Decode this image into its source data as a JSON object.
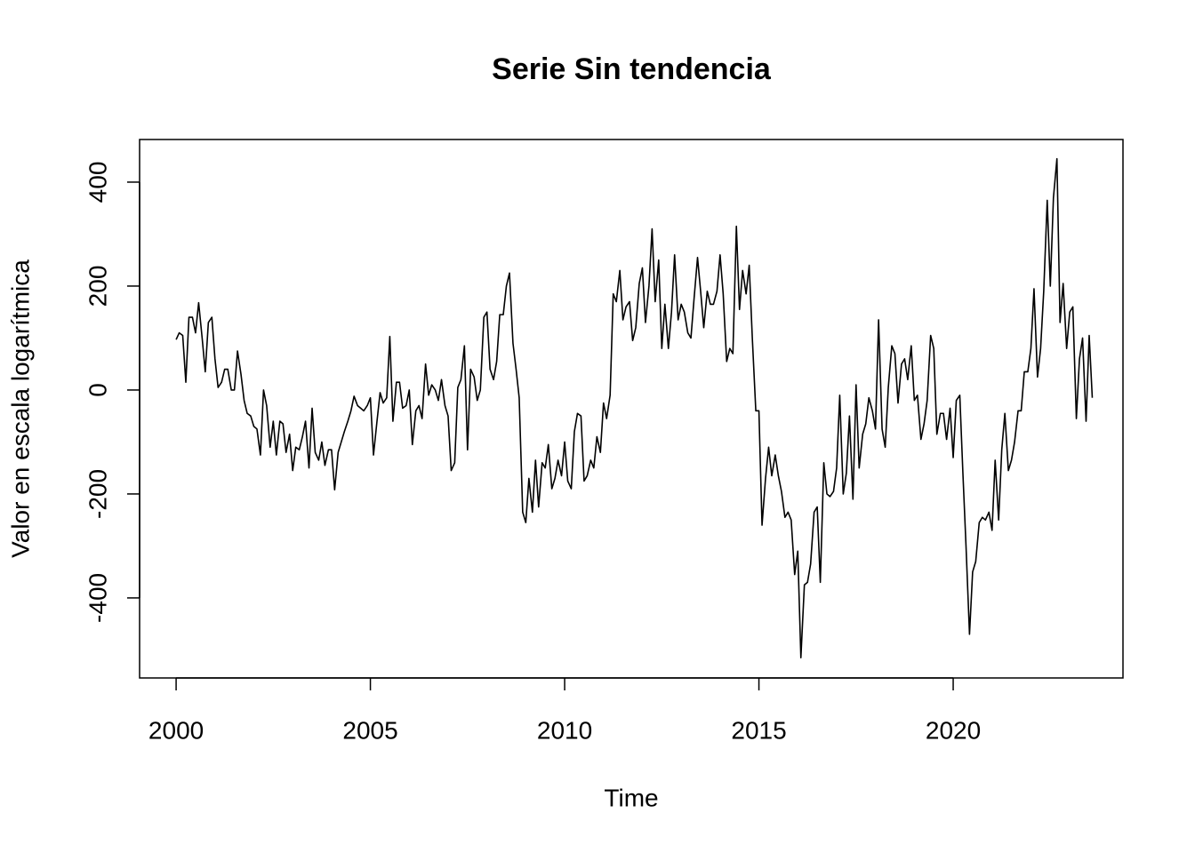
{
  "chart_data": {
    "type": "line",
    "title": "Serie Sin tendencia",
    "xlabel": "Time",
    "ylabel": "Valor en escala logarítmica",
    "xlim": [
      1999.06,
      2024.37
    ],
    "ylim": [
      -554,
      482
    ],
    "xticks": [
      2000,
      2005,
      2010,
      2015,
      2020
    ],
    "yticks": [
      -400,
      -200,
      0,
      200,
      400
    ],
    "color": "#000000",
    "x": [
      2000,
      2000.08,
      2000.17,
      2000.25,
      2000.33,
      2000.42,
      2000.5,
      2000.58,
      2000.67,
      2000.75,
      2000.83,
      2000.92,
      2001,
      2001.08,
      2001.17,
      2001.25,
      2001.33,
      2001.42,
      2001.5,
      2001.58,
      2001.67,
      2001.75,
      2001.83,
      2001.92,
      2002,
      2002.08,
      2002.17,
      2002.25,
      2002.33,
      2002.42,
      2002.5,
      2002.58,
      2002.67,
      2002.75,
      2002.83,
      2002.92,
      2003,
      2003.08,
      2003.17,
      2003.25,
      2003.33,
      2003.42,
      2003.5,
      2003.58,
      2003.67,
      2003.75,
      2003.83,
      2003.92,
      2004,
      2004.08,
      2004.17,
      2004.25,
      2004.33,
      2004.42,
      2004.5,
      2004.58,
      2004.67,
      2004.75,
      2004.83,
      2004.92,
      2005,
      2005.08,
      2005.17,
      2005.25,
      2005.33,
      2005.42,
      2005.5,
      2005.58,
      2005.67,
      2005.75,
      2005.83,
      2005.92,
      2006,
      2006.08,
      2006.17,
      2006.25,
      2006.33,
      2006.42,
      2006.5,
      2006.58,
      2006.67,
      2006.75,
      2006.83,
      2006.92,
      2007,
      2007.08,
      2007.17,
      2007.25,
      2007.33,
      2007.42,
      2007.5,
      2007.58,
      2007.67,
      2007.75,
      2007.83,
      2007.92,
      2008,
      2008.08,
      2008.17,
      2008.25,
      2008.33,
      2008.42,
      2008.5,
      2008.58,
      2008.67,
      2008.75,
      2008.83,
      2008.92,
      2009,
      2009.08,
      2009.17,
      2009.25,
      2009.33,
      2009.42,
      2009.5,
      2009.58,
      2009.67,
      2009.75,
      2009.83,
      2009.92,
      2010,
      2010.08,
      2010.17,
      2010.25,
      2010.33,
      2010.42,
      2010.5,
      2010.58,
      2010.67,
      2010.75,
      2010.83,
      2010.92,
      2011,
      2011.08,
      2011.17,
      2011.25,
      2011.33,
      2011.42,
      2011.5,
      2011.58,
      2011.67,
      2011.75,
      2011.83,
      2011.92,
      2012,
      2012.08,
      2012.17,
      2012.25,
      2012.33,
      2012.42,
      2012.5,
      2012.58,
      2012.67,
      2012.75,
      2012.83,
      2012.92,
      2013,
      2013.08,
      2013.17,
      2013.25,
      2013.33,
      2013.42,
      2013.5,
      2013.58,
      2013.67,
      2013.75,
      2013.83,
      2013.92,
      2014,
      2014.08,
      2014.17,
      2014.25,
      2014.33,
      2014.42,
      2014.5,
      2014.58,
      2014.67,
      2014.75,
      2014.83,
      2014.92,
      2015,
      2015.08,
      2015.17,
      2015.25,
      2015.33,
      2015.42,
      2015.5,
      2015.58,
      2015.67,
      2015.75,
      2015.83,
      2015.92,
      2016,
      2016.08,
      2016.17,
      2016.25,
      2016.33,
      2016.42,
      2016.5,
      2016.58,
      2016.67,
      2016.75,
      2016.83,
      2016.92,
      2017,
      2017.08,
      2017.17,
      2017.25,
      2017.33,
      2017.42,
      2017.5,
      2017.58,
      2017.67,
      2017.75,
      2017.83,
      2017.92,
      2018,
      2018.08,
      2018.17,
      2018.25,
      2018.33,
      2018.42,
      2018.5,
      2018.58,
      2018.67,
      2018.75,
      2018.83,
      2018.92,
      2019,
      2019.08,
      2019.17,
      2019.25,
      2019.33,
      2019.42,
      2019.5,
      2019.58,
      2019.67,
      2019.75,
      2019.83,
      2019.92,
      2020,
      2020.08,
      2020.17,
      2020.25,
      2020.33,
      2020.42,
      2020.5,
      2020.58,
      2020.67,
      2020.75,
      2020.83,
      2020.92,
      2021,
      2021.08,
      2021.17,
      2021.25,
      2021.33,
      2021.42,
      2021.5,
      2021.58,
      2021.67,
      2021.75,
      2021.83,
      2021.92,
      2022,
      2022.08,
      2022.17,
      2022.25,
      2022.33,
      2022.42,
      2022.5,
      2022.58,
      2022.67,
      2022.75,
      2022.83,
      2022.92,
      2023,
      2023.08,
      2023.17,
      2023.25,
      2023.33,
      2023.42,
      2023.5,
      2023.58
    ],
    "values": [
      97,
      110,
      105,
      15,
      140,
      140,
      110,
      168,
      100,
      35,
      130,
      140,
      60,
      5,
      15,
      40,
      40,
      0,
      0,
      75,
      30,
      -20,
      -45,
      -50,
      -70,
      -75,
      -125,
      0,
      -30,
      -110,
      -60,
      -125,
      -60,
      -65,
      -120,
      -85,
      -155,
      -110,
      -115,
      -90,
      -60,
      -150,
      -35,
      -120,
      -135,
      -100,
      -145,
      -115,
      -115,
      -192,
      -120,
      -100,
      -80,
      -60,
      -40,
      -12,
      -30,
      -35,
      -40,
      -30,
      -15,
      -125,
      -60,
      -5,
      -25,
      -15,
      103,
      -60,
      15,
      15,
      -35,
      -30,
      0,
      -105,
      -40,
      -30,
      -55,
      50,
      -10,
      10,
      0,
      -20,
      20,
      -30,
      -50,
      -155,
      -140,
      5,
      20,
      85,
      -115,
      40,
      25,
      -20,
      0,
      140,
      150,
      40,
      20,
      55,
      145,
      145,
      200,
      225,
      90,
      40,
      -15,
      -235,
      -255,
      -170,
      -235,
      -135,
      -225,
      -140,
      -150,
      -105,
      -190,
      -170,
      -135,
      -165,
      -100,
      -175,
      -190,
      -80,
      -45,
      -50,
      -175,
      -165,
      -135,
      -150,
      -90,
      -120,
      -25,
      -55,
      -10,
      185,
      170,
      230,
      135,
      160,
      170,
      95,
      120,
      205,
      235,
      130,
      200,
      310,
      170,
      250,
      80,
      165,
      80,
      150,
      260,
      135,
      165,
      150,
      110,
      100,
      175,
      255,
      190,
      120,
      190,
      165,
      165,
      190,
      260,
      185,
      55,
      80,
      70,
      315,
      155,
      230,
      185,
      240,
      100,
      -40,
      -40,
      -260,
      -170,
      -110,
      -165,
      -125,
      -165,
      -195,
      -245,
      -235,
      -250,
      -355,
      -310,
      -515,
      -375,
      -370,
      -335,
      -235,
      -225,
      -370,
      -140,
      -200,
      -205,
      -195,
      -150,
      -10,
      -200,
      -160,
      -50,
      -210,
      10,
      -150,
      -85,
      -65,
      -15,
      -40,
      -75,
      135,
      -75,
      -110,
      5,
      85,
      70,
      -25,
      50,
      60,
      20,
      85,
      -20,
      -10,
      -95,
      -65,
      -20,
      105,
      80,
      -85,
      -45,
      -45,
      -95,
      -35,
      -130,
      -20,
      -10,
      -160,
      -300,
      -470,
      -350,
      -330,
      -255,
      -245,
      -250,
      -235,
      -270,
      -135,
      -250,
      -115,
      -45,
      -155,
      -135,
      -100,
      -40,
      -40,
      35,
      35,
      80,
      195,
      25,
      80,
      190,
      365,
      200,
      370,
      445,
      130,
      205,
      80,
      150,
      160,
      -55,
      60,
      100,
      -60,
      105,
      -15
    ]
  }
}
